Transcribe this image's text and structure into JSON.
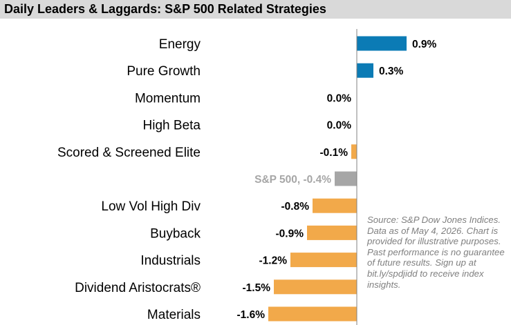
{
  "title": "Daily Leaders & Laggards: S&P 500 Related Strategies",
  "source_note": "Source: S&P Dow Jones Indices. Data as of May 4, 2026. Chart is provided for illustrative purposes. Past performance is no guarantee of future results. Sign up at bit.ly/spdjidd to receive index insights.",
  "colors": {
    "positive": "#0b7bb5",
    "negative": "#f2a94a",
    "benchmark": "#a6a6a6",
    "benchmark_label": "#a6a6a6",
    "axis": "#808080",
    "title_bg": "#d9d9d9"
  },
  "chart_data": {
    "type": "bar",
    "orientation": "horizontal",
    "title": "Daily Leaders & Laggards: S&P 500 Related Strategies",
    "categories": [
      "Energy",
      "Pure Growth",
      "Momentum",
      "High Beta",
      "Scored & Screened Elite",
      "",
      "Low Vol High Div",
      "Buyback",
      "Industrials",
      "Dividend Aristocrats®",
      "Materials"
    ],
    "values": [
      0.9,
      0.3,
      0.0,
      0.0,
      -0.1,
      -0.4,
      -0.8,
      -0.9,
      -1.2,
      -1.5,
      -1.6
    ],
    "data_labels": [
      "0.9%",
      "0.3%",
      "0.0%",
      "0.0%",
      "-0.1%",
      "S&P 500, -0.4%",
      "-0.8%",
      "-0.9%",
      "-1.2%",
      "-1.5%",
      "-1.6%"
    ],
    "benchmark_index": 5,
    "unit": "%",
    "grid": false,
    "legend": "none"
  }
}
